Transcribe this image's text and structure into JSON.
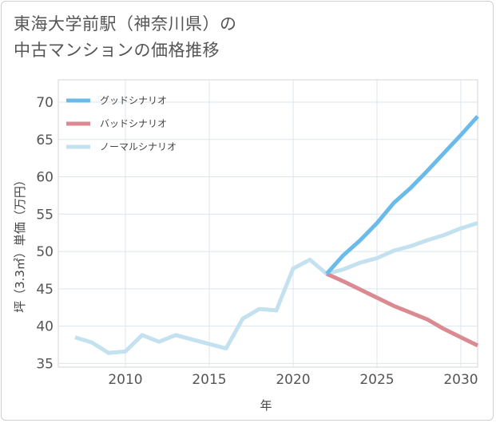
{
  "title": {
    "line1": "東海大学前駅（神奈川県）の",
    "line2": "中古マンションの価格推移"
  },
  "chart_data": {
    "type": "line",
    "title": "東海大学前駅（神奈川県）の中古マンションの価格推移",
    "xlabel": "年",
    "ylabel": "坪（3.3㎡）単価（万円）",
    "xlim": [
      2006,
      2031
    ],
    "ylim": [
      34.5,
      73
    ],
    "xticks": [
      2010,
      2015,
      2020,
      2025,
      2030
    ],
    "yticks": [
      35,
      40,
      45,
      50,
      55,
      60,
      65,
      70
    ],
    "grid": true,
    "legend_position": "top-left",
    "series": [
      {
        "name": "グッドシナリオ",
        "color": "#6bbbea",
        "x": [
          2022,
          2023,
          2024,
          2025,
          2026,
          2027,
          2028,
          2029,
          2030,
          2031
        ],
        "values": [
          47.0,
          49.5,
          51.5,
          53.8,
          56.5,
          58.5,
          60.8,
          63.2,
          65.6,
          68.1
        ]
      },
      {
        "name": "バッドシナリオ",
        "color": "#dc8a92",
        "x": [
          2022,
          2023,
          2024,
          2025,
          2026,
          2027,
          2028,
          2029,
          2030,
          2031
        ],
        "values": [
          47.0,
          46.0,
          44.9,
          43.8,
          42.7,
          41.8,
          40.9,
          39.6,
          38.5,
          37.4
        ]
      },
      {
        "name": "ノーマルシナリオ",
        "color": "#c3e1ef",
        "x": [
          2007,
          2008,
          2009,
          2010,
          2011,
          2012,
          2013,
          2014,
          2015,
          2016,
          2017,
          2018,
          2019,
          2020,
          2021,
          2022,
          2023,
          2024,
          2025,
          2026,
          2027,
          2028,
          2029,
          2030,
          2031
        ],
        "values": [
          38.5,
          37.8,
          36.4,
          36.6,
          38.8,
          37.9,
          38.8,
          38.2,
          37.6,
          37.0,
          41.0,
          42.3,
          42.1,
          47.7,
          48.9,
          47.0,
          47.6,
          48.5,
          49.1,
          50.1,
          50.7,
          51.5,
          52.2,
          53.1,
          53.8
        ]
      }
    ]
  }
}
